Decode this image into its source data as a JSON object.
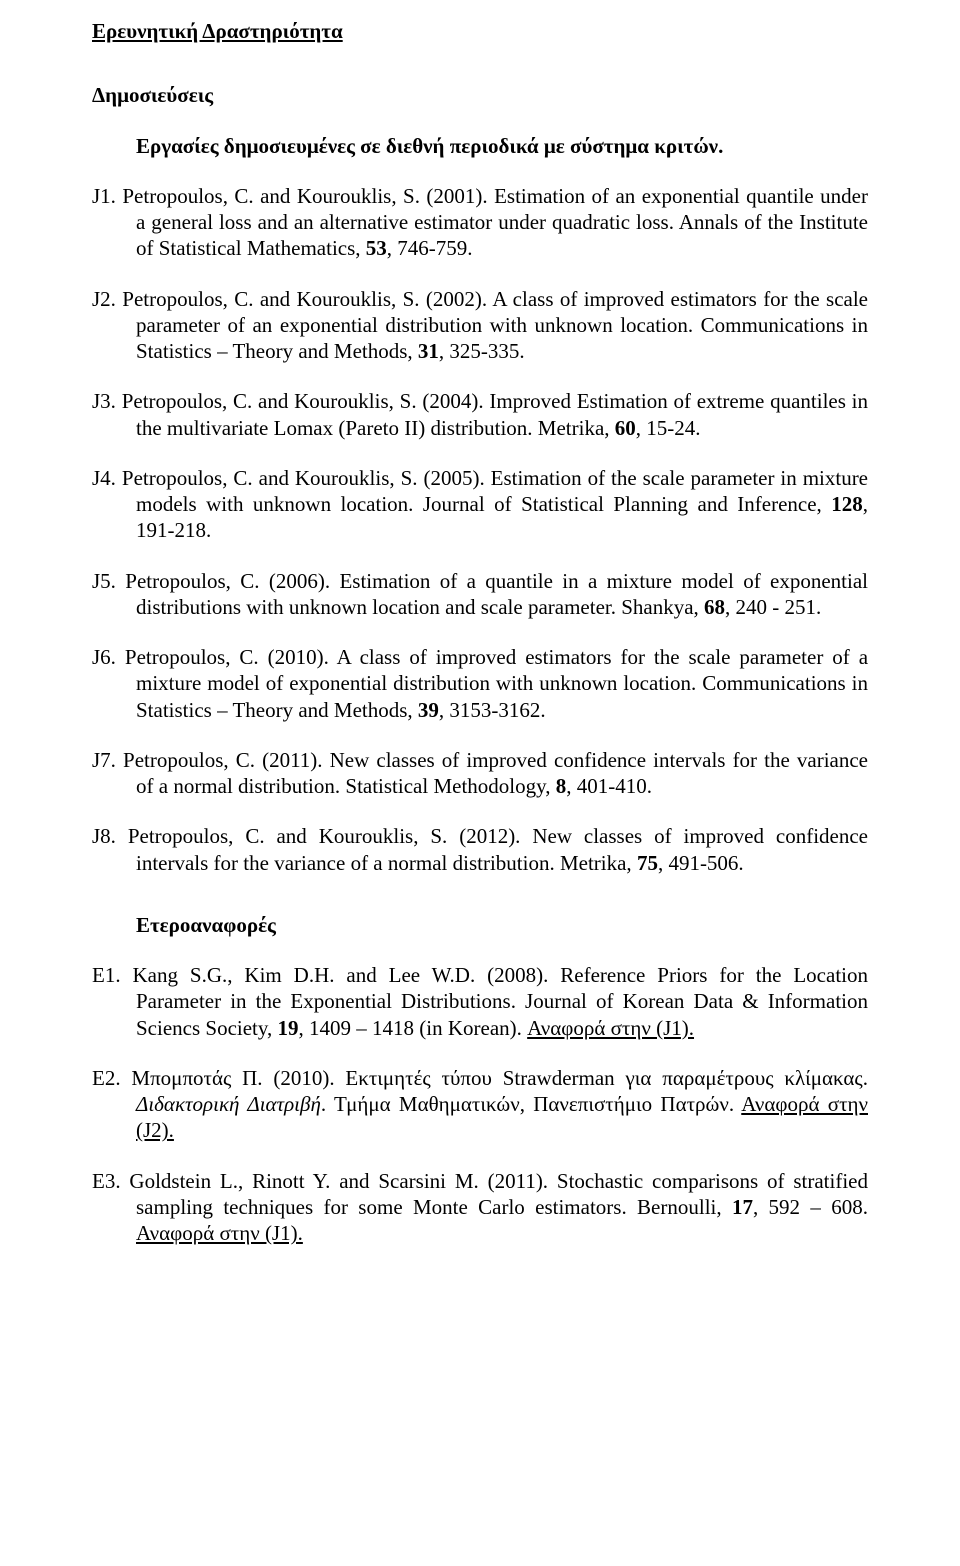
{
  "title": "Ερευνητική Δραστηριότητα",
  "subtitle": "Δημοσιεύσεις",
  "section1_heading": "Εργασίες δημοσιευμένες σε διεθνή περιοδικά με σύστημα κριτών.",
  "j1": {
    "tag": "J1.",
    "a": "Petropoulos, C. and Kourouklis, S. (2001). Estimation of an exponential quantile under a general loss and an alternative estimator under quadratic loss. Annals of the Institute of Statistical Mathematics, ",
    "b": "53",
    "c": ", 746-759."
  },
  "j2": {
    "tag": "J2.",
    "a": "Petropoulos, C. and Kourouklis, S. (2002). A class of improved estimators for the scale parameter of an exponential distribution with unknown location. Communications in Statistics – Theory and Methods, ",
    "b": "31",
    "c": ", 325-335."
  },
  "j3": {
    "tag": "J3.",
    "a": "Petropoulos, C. and Kourouklis, S. (2004). Improved Estimation of extreme quantiles in the multivariate Lomax (Pareto II) distribution. Metrika, ",
    "b": "60",
    "c": ", 15-24."
  },
  "j4": {
    "tag": "J4.",
    "a": "Petropoulos, C. and Kourouklis, S. (2005). Estimation of the scale parameter in mixture models with unknown location. Journal of Statistical Planning and Inference, ",
    "b": "128",
    "c": ", 191-218."
  },
  "j5": {
    "tag": "J5.",
    "a": "Petropoulos, C. (2006). Estimation of a quantile in a mixture model of exponential distributions with unknown location and scale parameter. Shankya, ",
    "b": "68",
    "c": ", 240 - 251."
  },
  "j6": {
    "tag": "J6.",
    "a": "Petropoulos, C. (2010). A class of improved estimators for the scale parameter of a mixture model of exponential distribution with unknown location. Communications in Statistics – Theory and Methods, ",
    "b": "39",
    "c": ", 3153-3162."
  },
  "j7": {
    "tag": "J7.",
    "a": "Petropoulos, C. (2011). New classes of improved confidence intervals for the variance of a normal distribution. Statistical Methodology, ",
    "b": "8",
    "c": ", 401-410."
  },
  "j8": {
    "tag": "J8.",
    "a": "Petropoulos, C. and Kourouklis, S. (2012). New classes of improved confidence intervals for the variance of a normal distribution. Metrika, ",
    "b": "75",
    "c": ", 491-506."
  },
  "section2_heading": "Ετεροαναφορές",
  "e1": {
    "tag": "E1.",
    "a": "Kang S.G., Kim D.H. and Lee W.D. (2008). Reference Priors for the Location Parameter in the Exponential Distributions. Journal of Korean Data & Information Sciencs Society, ",
    "b": "19",
    "c": ", 1409 – 1418 (in Korean). ",
    "ref": "Αναφορά στην (J1)."
  },
  "e2": {
    "tag": "E2.",
    "a": "Μπομποτάς Π. (2010). Εκτιμητές τύπου Strawderman για παραμέτρους κλίμακας. ",
    "it": "Διδακτορική Διατριβή",
    "b": ". Τμήμα Μαθηματικών, Πανεπιστήμιο Πατρών. ",
    "ref": "Αναφορά στην (J2)."
  },
  "e3": {
    "tag": "E3.",
    "a": "Goldstein L., Rinott Y. and Scarsini M. (2011). Stochastic comparisons of stratified sampling techniques for some Monte Carlo estimators. Bernoulli, ",
    "b": "17",
    "c": ", 592 – 608. ",
    "ref": "Αναφορά στην (J1)."
  }
}
